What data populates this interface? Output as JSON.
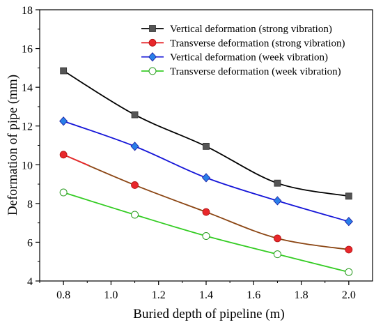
{
  "chart_data": {
    "type": "line",
    "xlabel": "Buried depth of pipeline (m)",
    "ylabel": "Deformation of pipe (mm)",
    "xlim": [
      0.7,
      2.1
    ],
    "ylim": [
      4,
      18
    ],
    "xticks": [
      "0.8",
      "1.0",
      "1.2",
      "1.4",
      "1.6",
      "1.8",
      "2.0"
    ],
    "yticks": [
      "4",
      "6",
      "8",
      "10",
      "12",
      "14",
      "16",
      "18"
    ],
    "grid": false,
    "legend_position": "top-right",
    "x": [
      0.8,
      1.1,
      1.4,
      1.7,
      2.0
    ],
    "series": [
      {
        "name": "Vertical deformation (strong vibration)",
        "color": "#000000",
        "marker": "square",
        "marker_fill": "#555555",
        "values": [
          14.85,
          12.58,
          10.95,
          9.05,
          8.38
        ]
      },
      {
        "name": "Transverse deformation (strong vibration)",
        "color": "#e8272b",
        "color_segment": "#8b4513",
        "marker": "circle",
        "marker_fill": "#e8272b",
        "values": [
          10.52,
          8.95,
          7.56,
          6.2,
          5.62
        ]
      },
      {
        "name": "Vertical deformation (week vibration)",
        "color": "#1515d8",
        "marker": "diamond",
        "marker_fill": "#2a7fe8",
        "values": [
          12.25,
          10.95,
          9.33,
          8.14,
          7.07
        ]
      },
      {
        "name": "Transverse deformation (week vibration)",
        "color": "#33cc22",
        "marker": "circle-open",
        "marker_fill": "#ffffff",
        "values": [
          8.57,
          7.42,
          6.32,
          5.38,
          4.46
        ]
      }
    ]
  }
}
